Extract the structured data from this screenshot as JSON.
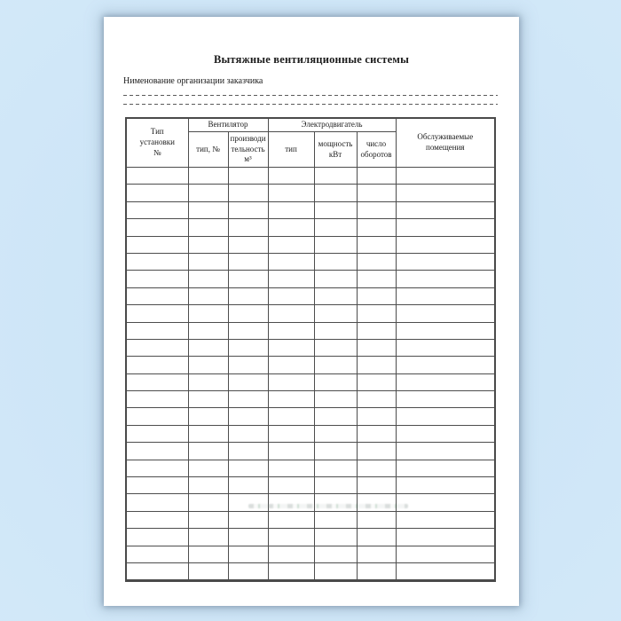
{
  "page": {
    "title": "Вытяжные вентиляционные системы",
    "org_label": "Нименование организации заказчика"
  },
  "table": {
    "group_headers": {
      "fan": "Вентилятор",
      "motor": "Электродвигатель"
    },
    "columns": {
      "unit_type": "Тип\nустановки\n№",
      "fan_type": "тип, №",
      "fan_capacity": "производи\nтельность\nм³",
      "motor_type": "тип",
      "motor_power": "мощность\nкВт",
      "motor_speed": "число\nоборотов",
      "served_rooms": "Обслуживаемые\nпомещения"
    },
    "body_row_count": 24,
    "body_column_count": 7
  }
}
